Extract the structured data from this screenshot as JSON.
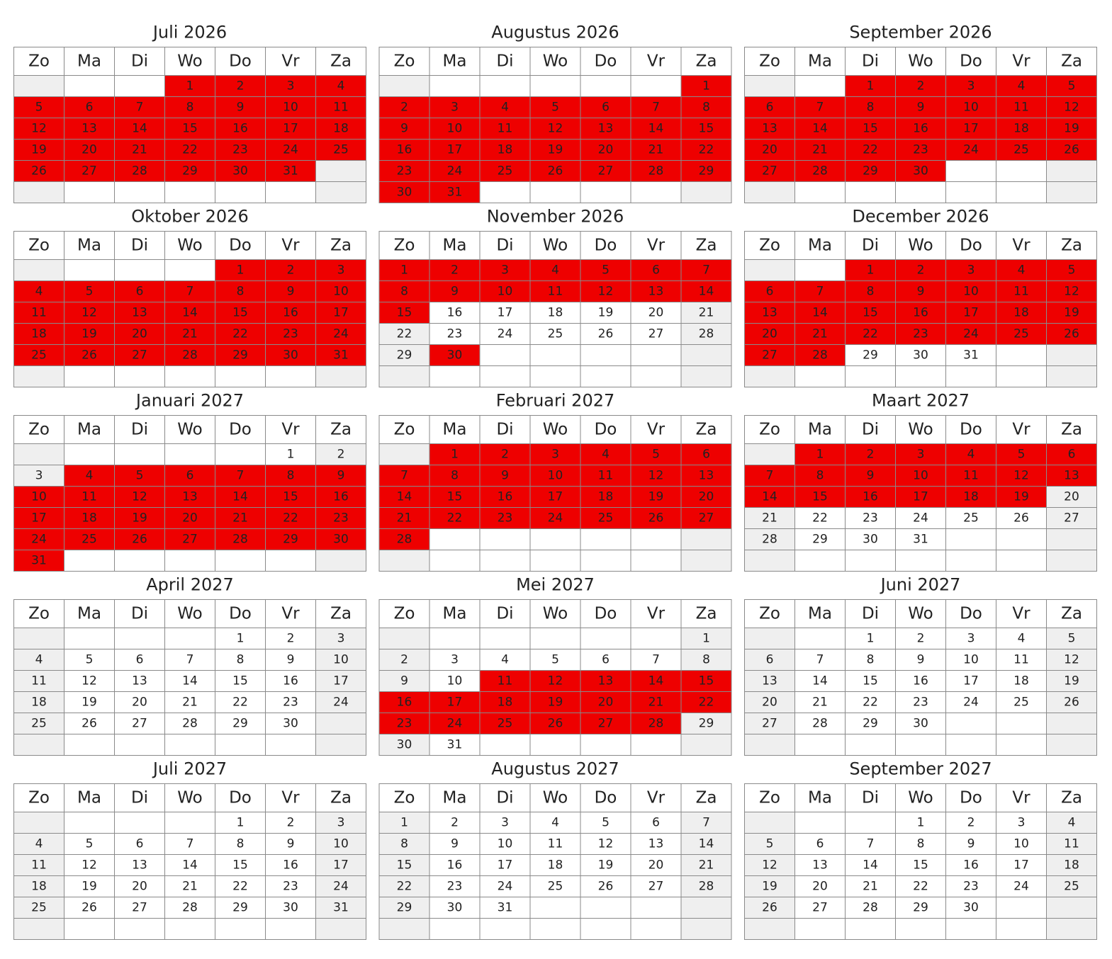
{
  "weekdays": [
    "Zo",
    "Ma",
    "Di",
    "Wo",
    "Do",
    "Vr",
    "Za"
  ],
  "booked_color": "#ee0000",
  "months": [
    {
      "title": "Juli 2026",
      "booked": [
        [
          1,
          31
        ]
      ],
      "weeks": [
        [
          null,
          null,
          null,
          1,
          2,
          3,
          4
        ],
        [
          5,
          6,
          7,
          8,
          9,
          10,
          11
        ],
        [
          12,
          13,
          14,
          15,
          16,
          17,
          18
        ],
        [
          19,
          20,
          21,
          22,
          23,
          24,
          25
        ],
        [
          26,
          27,
          28,
          29,
          30,
          31,
          null
        ],
        [
          null,
          null,
          null,
          null,
          null,
          null,
          null
        ]
      ]
    },
    {
      "title": "Augustus 2026",
      "booked": [
        [
          1,
          31
        ]
      ],
      "weeks": [
        [
          null,
          null,
          null,
          null,
          null,
          null,
          1
        ],
        [
          2,
          3,
          4,
          5,
          6,
          7,
          8
        ],
        [
          9,
          10,
          11,
          12,
          13,
          14,
          15
        ],
        [
          16,
          17,
          18,
          19,
          20,
          21,
          22
        ],
        [
          23,
          24,
          25,
          26,
          27,
          28,
          29
        ],
        [
          30,
          31,
          null,
          null,
          null,
          null,
          null
        ]
      ]
    },
    {
      "title": "September 2026",
      "booked": [
        [
          1,
          30
        ]
      ],
      "weeks": [
        [
          null,
          null,
          1,
          2,
          3,
          4,
          5
        ],
        [
          6,
          7,
          8,
          9,
          10,
          11,
          12
        ],
        [
          13,
          14,
          15,
          16,
          17,
          18,
          19
        ],
        [
          20,
          21,
          22,
          23,
          24,
          25,
          26
        ],
        [
          27,
          28,
          29,
          30,
          null,
          null,
          null
        ],
        [
          null,
          null,
          null,
          null,
          null,
          null,
          null
        ]
      ]
    },
    {
      "title": "Oktober 2026",
      "booked": [
        [
          1,
          31
        ]
      ],
      "weeks": [
        [
          null,
          null,
          null,
          null,
          1,
          2,
          3
        ],
        [
          4,
          5,
          6,
          7,
          8,
          9,
          10
        ],
        [
          11,
          12,
          13,
          14,
          15,
          16,
          17
        ],
        [
          18,
          19,
          20,
          21,
          22,
          23,
          24
        ],
        [
          25,
          26,
          27,
          28,
          29,
          30,
          31
        ],
        [
          null,
          null,
          null,
          null,
          null,
          null,
          null
        ]
      ]
    },
    {
      "title": "November 2026",
      "booked": [
        [
          1,
          15
        ],
        [
          30,
          30
        ]
      ],
      "weeks": [
        [
          1,
          2,
          3,
          4,
          5,
          6,
          7
        ],
        [
          8,
          9,
          10,
          11,
          12,
          13,
          14
        ],
        [
          15,
          16,
          17,
          18,
          19,
          20,
          21
        ],
        [
          22,
          23,
          24,
          25,
          26,
          27,
          28
        ],
        [
          29,
          30,
          null,
          null,
          null,
          null,
          null
        ],
        [
          null,
          null,
          null,
          null,
          null,
          null,
          null
        ]
      ]
    },
    {
      "title": "December 2026",
      "booked": [
        [
          1,
          28
        ]
      ],
      "weeks": [
        [
          null,
          null,
          1,
          2,
          3,
          4,
          5
        ],
        [
          6,
          7,
          8,
          9,
          10,
          11,
          12
        ],
        [
          13,
          14,
          15,
          16,
          17,
          18,
          19
        ],
        [
          20,
          21,
          22,
          23,
          24,
          25,
          26
        ],
        [
          27,
          28,
          29,
          30,
          31,
          null,
          null
        ],
        [
          null,
          null,
          null,
          null,
          null,
          null,
          null
        ]
      ]
    },
    {
      "title": "Januari 2027",
      "booked": [
        [
          4,
          31
        ]
      ],
      "weeks": [
        [
          null,
          null,
          null,
          null,
          null,
          1,
          2
        ],
        [
          3,
          4,
          5,
          6,
          7,
          8,
          9
        ],
        [
          10,
          11,
          12,
          13,
          14,
          15,
          16
        ],
        [
          17,
          18,
          19,
          20,
          21,
          22,
          23
        ],
        [
          24,
          25,
          26,
          27,
          28,
          29,
          30
        ],
        [
          31,
          null,
          null,
          null,
          null,
          null,
          null
        ]
      ]
    },
    {
      "title": "Februari 2027",
      "booked": [
        [
          1,
          28
        ]
      ],
      "weeks": [
        [
          null,
          1,
          2,
          3,
          4,
          5,
          6
        ],
        [
          7,
          8,
          9,
          10,
          11,
          12,
          13
        ],
        [
          14,
          15,
          16,
          17,
          18,
          19,
          20
        ],
        [
          21,
          22,
          23,
          24,
          25,
          26,
          27
        ],
        [
          28,
          null,
          null,
          null,
          null,
          null,
          null
        ],
        [
          null,
          null,
          null,
          null,
          null,
          null,
          null
        ]
      ]
    },
    {
      "title": "Maart 2027",
      "booked": [
        [
          1,
          19
        ]
      ],
      "weeks": [
        [
          null,
          1,
          2,
          3,
          4,
          5,
          6
        ],
        [
          7,
          8,
          9,
          10,
          11,
          12,
          13
        ],
        [
          14,
          15,
          16,
          17,
          18,
          19,
          20
        ],
        [
          21,
          22,
          23,
          24,
          25,
          26,
          27
        ],
        [
          28,
          29,
          30,
          31,
          null,
          null,
          null
        ],
        [
          null,
          null,
          null,
          null,
          null,
          null,
          null
        ]
      ]
    },
    {
      "title": "April 2027",
      "booked": [],
      "weeks": [
        [
          null,
          null,
          null,
          null,
          1,
          2,
          3
        ],
        [
          4,
          5,
          6,
          7,
          8,
          9,
          10
        ],
        [
          11,
          12,
          13,
          14,
          15,
          16,
          17
        ],
        [
          18,
          19,
          20,
          21,
          22,
          23,
          24
        ],
        [
          25,
          26,
          27,
          28,
          29,
          30,
          null
        ],
        [
          null,
          null,
          null,
          null,
          null,
          null,
          null
        ]
      ]
    },
    {
      "title": "Mei 2027",
      "booked": [
        [
          11,
          28
        ]
      ],
      "weeks": [
        [
          null,
          null,
          null,
          null,
          null,
          null,
          1
        ],
        [
          2,
          3,
          4,
          5,
          6,
          7,
          8
        ],
        [
          9,
          10,
          11,
          12,
          13,
          14,
          15
        ],
        [
          16,
          17,
          18,
          19,
          20,
          21,
          22
        ],
        [
          23,
          24,
          25,
          26,
          27,
          28,
          29
        ],
        [
          30,
          31,
          null,
          null,
          null,
          null,
          null
        ]
      ]
    },
    {
      "title": "Juni 2027",
      "booked": [],
      "weeks": [
        [
          null,
          null,
          1,
          2,
          3,
          4,
          5
        ],
        [
          6,
          7,
          8,
          9,
          10,
          11,
          12
        ],
        [
          13,
          14,
          15,
          16,
          17,
          18,
          19
        ],
        [
          20,
          21,
          22,
          23,
          24,
          25,
          26
        ],
        [
          27,
          28,
          29,
          30,
          null,
          null,
          null
        ],
        [
          null,
          null,
          null,
          null,
          null,
          null,
          null
        ]
      ]
    },
    {
      "title": "Juli 2027",
      "booked": [],
      "weeks": [
        [
          null,
          null,
          null,
          null,
          1,
          2,
          3
        ],
        [
          4,
          5,
          6,
          7,
          8,
          9,
          10
        ],
        [
          11,
          12,
          13,
          14,
          15,
          16,
          17
        ],
        [
          18,
          19,
          20,
          21,
          22,
          23,
          24
        ],
        [
          25,
          26,
          27,
          28,
          29,
          30,
          31
        ],
        [
          null,
          null,
          null,
          null,
          null,
          null,
          null
        ]
      ]
    },
    {
      "title": "Augustus 2027",
      "booked": [],
      "weeks": [
        [
          1,
          2,
          3,
          4,
          5,
          6,
          7
        ],
        [
          8,
          9,
          10,
          11,
          12,
          13,
          14
        ],
        [
          15,
          16,
          17,
          18,
          19,
          20,
          21
        ],
        [
          22,
          23,
          24,
          25,
          26,
          27,
          28
        ],
        [
          29,
          30,
          31,
          null,
          null,
          null,
          null
        ],
        [
          null,
          null,
          null,
          null,
          null,
          null,
          null
        ]
      ]
    },
    {
      "title": "September 2027",
      "booked": [],
      "weeks": [
        [
          null,
          null,
          null,
          1,
          2,
          3,
          4
        ],
        [
          5,
          6,
          7,
          8,
          9,
          10,
          11
        ],
        [
          12,
          13,
          14,
          15,
          16,
          17,
          18
        ],
        [
          19,
          20,
          21,
          22,
          23,
          24,
          25
        ],
        [
          26,
          27,
          28,
          29,
          30,
          null,
          null
        ],
        [
          null,
          null,
          null,
          null,
          null,
          null,
          null
        ]
      ]
    }
  ]
}
